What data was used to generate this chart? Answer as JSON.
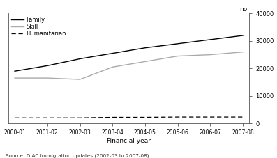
{
  "years": [
    "2000-01",
    "2001-02",
    "2002-03",
    "2003-04",
    "2004-05",
    "2005-06",
    "2006-07",
    "2007-08"
  ],
  "family": [
    19000,
    21000,
    23500,
    25500,
    27500,
    29000,
    30500,
    32000
  ],
  "skill": [
    16500,
    16500,
    16000,
    20500,
    22500,
    24500,
    25000,
    26000
  ],
  "humanitarian": [
    2000,
    2000,
    2000,
    2200,
    2200,
    2300,
    2300,
    2300
  ],
  "family_color": "#000000",
  "skill_color": "#aaaaaa",
  "humanitarian_color": "#000000",
  "ylabel": "no.",
  "xlabel": "Financial year",
  "source": "Source: DIAC Immigration updates (2002-03 to 2007-08)",
  "ylim": [
    0,
    40000
  ],
  "yticks": [
    0,
    10000,
    20000,
    30000,
    40000
  ],
  "legend_family": "Family",
  "legend_skill": "Skill",
  "legend_humanitarian": "Humanitarian",
  "bg_color": "#ffffff"
}
